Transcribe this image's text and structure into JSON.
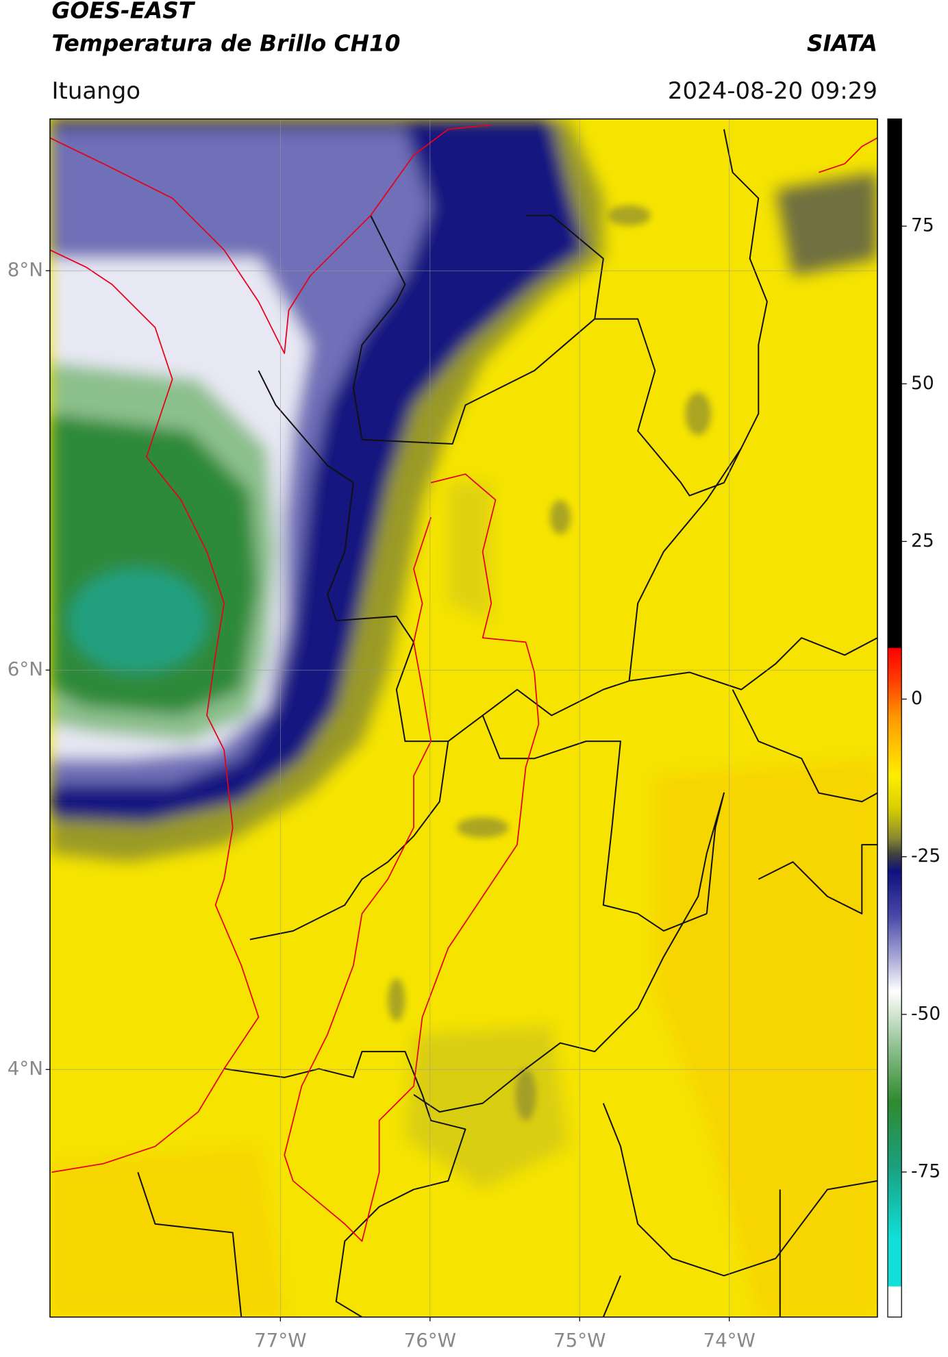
{
  "header": {
    "title": "GOES-EAST",
    "subtitle": "Temperatura de Brillo CH10",
    "source": "SIATA",
    "region": "Ituango",
    "timestamp": "2024-08-20 09:29"
  },
  "map": {
    "type": "map",
    "xlim": [
      -78.54,
      -73.01
    ],
    "ylim": [
      2.76,
      8.76
    ],
    "xticks": [
      {
        "value": -77,
        "label": "77°W"
      },
      {
        "value": -76,
        "label": "76°W"
      },
      {
        "value": -75,
        "label": "75°W"
      },
      {
        "value": -74,
        "label": "74°W"
      }
    ],
    "yticks": [
      {
        "value": 4,
        "label": "4°N"
      },
      {
        "value": 6,
        "label": "6°N"
      },
      {
        "value": 8,
        "label": "8°N"
      }
    ],
    "grid": true
  },
  "colorbar": {
    "lim": [
      -98,
      92
    ],
    "ticks": [
      -75,
      -50,
      -25,
      0,
      25,
      50,
      75
    ]
  }
}
